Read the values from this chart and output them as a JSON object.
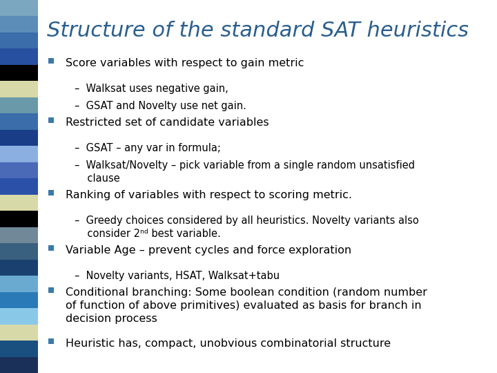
{
  "title": "Structure of the standard SAT heuristics",
  "title_color": "#2B5F8E",
  "title_fontsize": 22,
  "background_color": "#FFFFFF",
  "sidebar_colors": [
    "#7BA7C0",
    "#5C8DB8",
    "#3A6DAA",
    "#2850A0",
    "#000000",
    "#D8D9A8",
    "#6A9AAA",
    "#3A6DAA",
    "#1A3D88",
    "#8AAFE0",
    "#4A6AB8",
    "#2B50A8",
    "#D8D9A8",
    "#000000",
    "#708898",
    "#3A6080",
    "#1A4070",
    "#6AAAD0",
    "#2A7AB8",
    "#8AC8E8",
    "#D8D9A8",
    "#1A5080",
    "#1A3058"
  ],
  "bullet_color": "#3A7AAA",
  "text_color": "#000000",
  "content": [
    {
      "type": "bullet",
      "text": "Score variables with respect to gain metric"
    },
    {
      "type": "sub",
      "text": "–  Walksat uses negative gain,"
    },
    {
      "type": "sub",
      "text": "–  GSAT and Novelty use net gain."
    },
    {
      "type": "bullet",
      "text": "Restricted set of candidate variables"
    },
    {
      "type": "sub",
      "text": "–  GSAT – any var in formula;"
    },
    {
      "type": "sub2",
      "text": "–  Walksat/Novelty – pick variable from a single random unsatisfied\n    clause"
    },
    {
      "type": "bullet",
      "text": "Ranking of variables with respect to scoring metric."
    },
    {
      "type": "sub2",
      "text": "–  Greedy choices considered by all heuristics. Novelty variants also\n    consider 2ⁿᵈ best variable."
    },
    {
      "type": "bullet",
      "text": "Variable Age – prevent cycles and force exploration"
    },
    {
      "type": "sub",
      "text": "–  Novelty variants, HSAT, Walksat+tabu"
    },
    {
      "type": "bullet3",
      "text": "Conditional branching: Some boolean condition (random number\nof function of above primitives) evaluated as basis for branch in\ndecision process"
    },
    {
      "type": "bullet",
      "text": "Heuristic has, compact, unobvious combinatorial structure"
    }
  ]
}
